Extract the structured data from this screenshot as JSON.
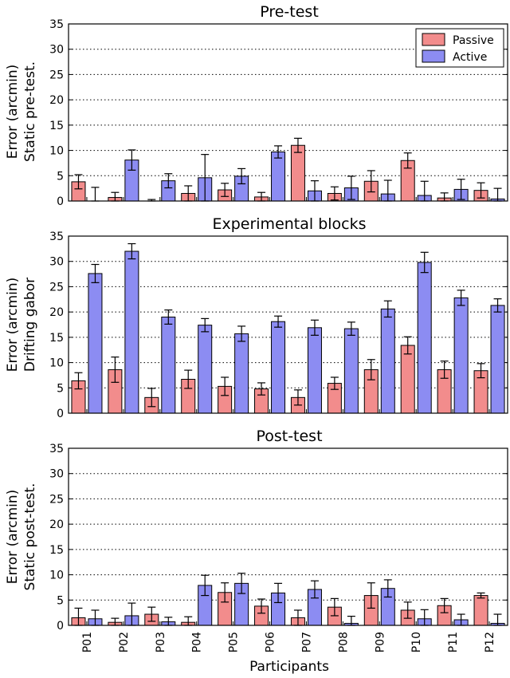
{
  "figure": {
    "xlabel": "Participants",
    "legend": {
      "placement": "top-right",
      "entries": [
        "Passive",
        "Active"
      ]
    },
    "colors": {
      "passive": "#f28c8c",
      "active": "#8c8cf2",
      "grid": "#000000"
    }
  },
  "chart_data": [
    {
      "type": "bar",
      "title": "Pre-test",
      "ylabel_lines": [
        "Error (arcmin)",
        "Static pre-test."
      ],
      "ylim": [
        0,
        35
      ],
      "yticks": [
        0,
        5,
        10,
        15,
        20,
        25,
        30,
        35
      ],
      "grid": true,
      "categories": [
        "P01",
        "P02",
        "P03",
        "P04",
        "P05",
        "P06",
        "P07",
        "P08",
        "P09",
        "P10",
        "P11",
        "P12"
      ],
      "series": [
        {
          "name": "Passive",
          "values": [
            3.8,
            0.7,
            0.0,
            1.5,
            2.2,
            0.8,
            11.0,
            1.5,
            3.9,
            8.0,
            0.6,
            2.1
          ],
          "errors": [
            1.4,
            1.0,
            0.3,
            1.5,
            1.3,
            0.9,
            1.4,
            1.3,
            2.1,
            1.5,
            1.0,
            1.5
          ]
        },
        {
          "name": "Active",
          "values": [
            0.0,
            8.1,
            4.0,
            4.6,
            4.9,
            9.7,
            2.0,
            2.6,
            1.4,
            1.1,
            2.3,
            0.4
          ],
          "errors": [
            2.7,
            2.0,
            1.4,
            4.6,
            1.5,
            1.2,
            2.0,
            2.3,
            2.7,
            2.8,
            2.0,
            2.1
          ]
        }
      ]
    },
    {
      "type": "bar",
      "title": "Experimental blocks",
      "ylabel_lines": [
        "Error (arcmin)",
        "Drifting gabor"
      ],
      "ylim": [
        0,
        35
      ],
      "yticks": [
        0,
        5,
        10,
        15,
        20,
        25,
        30,
        35
      ],
      "grid": true,
      "categories": [
        "P01",
        "P02",
        "P03",
        "P04",
        "P05",
        "P06",
        "P07",
        "P08",
        "P09",
        "P10",
        "P11",
        "P12"
      ],
      "series": [
        {
          "name": "Passive",
          "values": [
            6.4,
            8.6,
            3.1,
            6.7,
            5.3,
            4.8,
            3.1,
            5.9,
            8.6,
            13.4,
            8.6,
            8.4
          ],
          "errors": [
            1.6,
            2.5,
            1.8,
            1.8,
            1.8,
            1.2,
            1.5,
            1.2,
            2.0,
            1.7,
            1.7,
            1.4
          ]
        },
        {
          "name": "Active",
          "values": [
            27.6,
            32.0,
            19.0,
            17.4,
            15.7,
            18.1,
            16.9,
            16.7,
            20.6,
            29.8,
            22.8,
            21.3
          ],
          "errors": [
            1.8,
            1.5,
            1.4,
            1.3,
            1.5,
            1.1,
            1.5,
            1.3,
            1.6,
            2.0,
            1.5,
            1.3
          ]
        }
      ]
    },
    {
      "type": "bar",
      "title": "Post-test",
      "ylabel_lines": [
        "Error (arcmin)",
        "Static post-test."
      ],
      "ylim": [
        0,
        35
      ],
      "yticks": [
        0,
        5,
        10,
        15,
        20,
        25,
        30,
        35
      ],
      "grid": true,
      "categories": [
        "P01",
        "P02",
        "P03",
        "P04",
        "P05",
        "P06",
        "P07",
        "P08",
        "P09",
        "P10",
        "P11",
        "P12"
      ],
      "series": [
        {
          "name": "Passive",
          "values": [
            1.5,
            0.6,
            2.2,
            0.6,
            6.5,
            3.8,
            1.5,
            3.6,
            5.9,
            3.0,
            3.9,
            5.9
          ],
          "errors": [
            1.9,
            0.8,
            1.4,
            1.1,
            1.9,
            1.4,
            1.5,
            1.7,
            2.5,
            1.6,
            1.4,
            0.5
          ]
        },
        {
          "name": "Active",
          "values": [
            1.3,
            1.9,
            0.7,
            7.9,
            8.3,
            6.4,
            7.1,
            0.4,
            7.3,
            1.3,
            1.1,
            0.4
          ],
          "errors": [
            1.7,
            2.5,
            0.9,
            2.0,
            2.0,
            1.9,
            1.7,
            1.4,
            1.7,
            1.8,
            1.1,
            1.8
          ]
        }
      ]
    }
  ]
}
